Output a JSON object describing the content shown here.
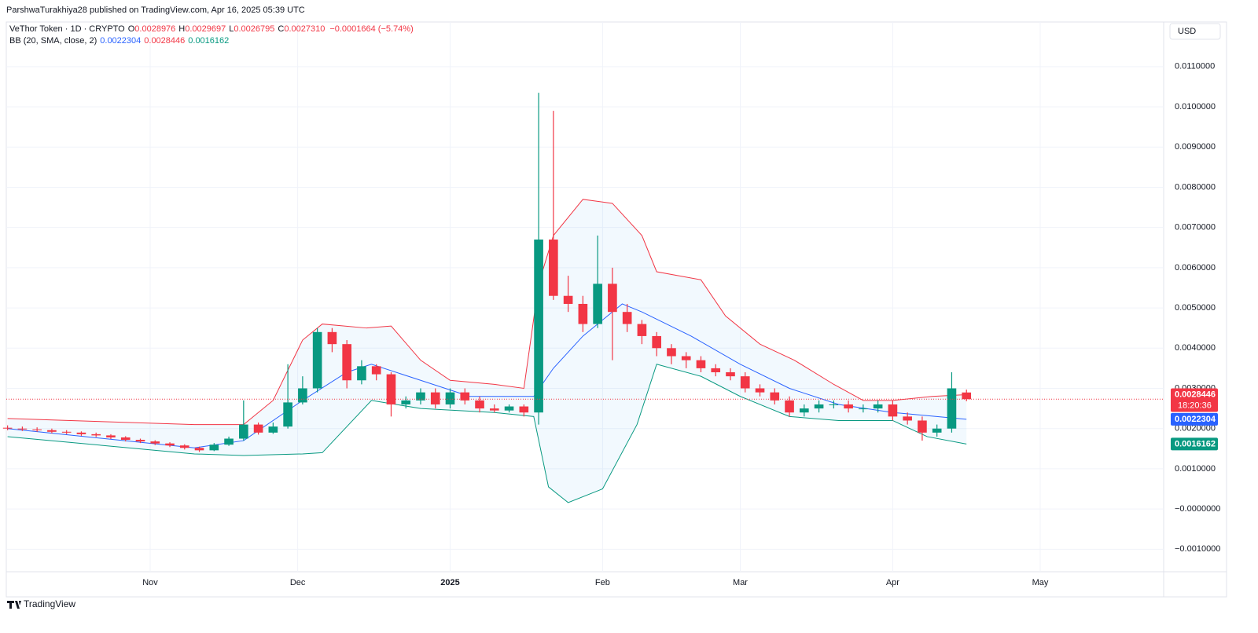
{
  "header": {
    "published": "ParshwaTurakhiya28 published on TradingView.com, Apr 16, 2025 05:39 UTC",
    "symbol": "VeThor Token · 1D · CRYPTO",
    "ohlc": [
      {
        "label": "O",
        "value": "0.0028976"
      },
      {
        "label": "H",
        "value": "0.0029697"
      },
      {
        "label": "L",
        "value": "0.0026795"
      },
      {
        "label": "C",
        "value": "0.0027310"
      }
    ],
    "change": "−0.0001664 (−5.74%)",
    "indicator": "BB (20, SMA, close, 2)",
    "indicator_values": [
      "0.0022304",
      "0.0028446",
      "0.0016162"
    ],
    "currency": "USD",
    "brand": "TradingView"
  },
  "chart_data": {
    "type": "candlestick",
    "up_color": "#089981",
    "down_color": "#f23645",
    "grid": true,
    "x": [
      2,
      5,
      8,
      11,
      14,
      17,
      20,
      23,
      26,
      29,
      32,
      35,
      38,
      41,
      44,
      47,
      50,
      53,
      56,
      59,
      62,
      65,
      68,
      71,
      74,
      77,
      80,
      83,
      86,
      89,
      92,
      95,
      98,
      101,
      104,
      107,
      110,
      113,
      116,
      119,
      122,
      125,
      128,
      131,
      134,
      137,
      140,
      143,
      146,
      149,
      152,
      155,
      158,
      161,
      164,
      167,
      170,
      173,
      176,
      179,
      182,
      185,
      188,
      191,
      194,
      197
    ],
    "open": [
      0.00202,
      0.002,
      0.00198,
      0.00196,
      0.00192,
      0.0019,
      0.00186,
      0.00183,
      0.00178,
      0.00172,
      0.00168,
      0.00163,
      0.00158,
      0.00152,
      0.00146,
      0.0016,
      0.00175,
      0.0021,
      0.0019,
      0.00205,
      0.00265,
      0.003,
      0.0044,
      0.0041,
      0.0032,
      0.00355,
      0.00335,
      0.0026,
      0.0027,
      0.0029,
      0.0026,
      0.0029,
      0.0027,
      0.0025,
      0.00245,
      0.00255,
      0.0024,
      0.0067,
      0.0053,
      0.0051,
      0.0046,
      0.0056,
      0.0049,
      0.0046,
      0.0043,
      0.004,
      0.0038,
      0.0037,
      0.0035,
      0.0034,
      0.0033,
      0.003,
      0.0029,
      0.0027,
      0.0024,
      0.0025,
      0.0026,
      0.0026,
      0.0025,
      0.0025,
      0.0026,
      0.0023,
      0.0022,
      0.0019,
      0.002,
      0.0028976
    ],
    "high": [
      0.00208,
      0.00205,
      0.00203,
      0.002,
      0.00196,
      0.00193,
      0.0019,
      0.00186,
      0.00181,
      0.00175,
      0.00171,
      0.00166,
      0.00161,
      0.00155,
      0.00164,
      0.0018,
      0.0027,
      0.00215,
      0.00215,
      0.0036,
      0.0033,
      0.0045,
      0.0045,
      0.0042,
      0.0037,
      0.0036,
      0.0034,
      0.0028,
      0.003,
      0.003,
      0.003,
      0.003,
      0.0028,
      0.0026,
      0.0026,
      0.0026,
      0.01035,
      0.0099,
      0.0058,
      0.0053,
      0.0068,
      0.006,
      0.0051,
      0.0047,
      0.0044,
      0.0041,
      0.0039,
      0.0038,
      0.0036,
      0.0035,
      0.0034,
      0.0031,
      0.003,
      0.0028,
      0.0026,
      0.0027,
      0.0027,
      0.0027,
      0.0026,
      0.0027,
      0.0027,
      0.0024,
      0.0023,
      0.0021,
      0.0034,
      0.0029697
    ],
    "low": [
      0.00196,
      0.00194,
      0.00192,
      0.00188,
      0.00186,
      0.00182,
      0.00179,
      0.00174,
      0.00168,
      0.00164,
      0.00159,
      0.00154,
      0.00148,
      0.00142,
      0.00144,
      0.00157,
      0.0017,
      0.00185,
      0.00187,
      0.002,
      0.0026,
      0.0029,
      0.0039,
      0.003,
      0.0031,
      0.0032,
      0.0023,
      0.0025,
      0.0026,
      0.0025,
      0.0025,
      0.0026,
      0.0024,
      0.0024,
      0.0024,
      0.0023,
      0.0021,
      0.0052,
      0.0049,
      0.0044,
      0.0045,
      0.0037,
      0.0044,
      0.0041,
      0.0038,
      0.0036,
      0.0035,
      0.0034,
      0.0033,
      0.0032,
      0.0029,
      0.0028,
      0.0026,
      0.0023,
      0.0023,
      0.0024,
      0.0025,
      0.0024,
      0.0024,
      0.0024,
      0.0022,
      0.0021,
      0.0017,
      0.0018,
      0.0019,
      0.0026795
    ],
    "close": [
      0.002,
      0.00198,
      0.00196,
      0.00192,
      0.0019,
      0.00186,
      0.00183,
      0.00178,
      0.00172,
      0.00168,
      0.00163,
      0.00158,
      0.00152,
      0.00146,
      0.0016,
      0.00175,
      0.0021,
      0.0019,
      0.00205,
      0.00265,
      0.003,
      0.0044,
      0.0041,
      0.0032,
      0.00355,
      0.00335,
      0.0026,
      0.0027,
      0.0029,
      0.0026,
      0.0029,
      0.0027,
      0.0025,
      0.00245,
      0.00255,
      0.0024,
      0.0067,
      0.0053,
      0.0051,
      0.0046,
      0.0056,
      0.0049,
      0.0046,
      0.0043,
      0.004,
      0.0038,
      0.0037,
      0.0035,
      0.0034,
      0.0033,
      0.003,
      0.0029,
      0.0027,
      0.0024,
      0.0025,
      0.0026,
      0.0026,
      0.0025,
      0.0025,
      0.0026,
      0.0023,
      0.0022,
      0.0019,
      0.002,
      0.003,
      0.002731
    ],
    "bands": [
      {
        "color": "#f23645",
        "x": [
          2,
          40,
          50,
          56,
          62,
          66,
          75,
          80,
          86,
          92,
          101,
          107,
          110,
          113,
          119,
          125,
          131,
          134,
          143,
          148,
          155,
          162,
          170,
          176,
          182,
          190,
          197
        ],
        "values": [
          0.00225,
          0.0021,
          0.0021,
          0.0027,
          0.0042,
          0.0046,
          0.0045,
          0.00455,
          0.0037,
          0.0032,
          0.0031,
          0.003,
          0.0056,
          0.0068,
          0.0077,
          0.0076,
          0.0068,
          0.0059,
          0.0057,
          0.0048,
          0.0041,
          0.0037,
          0.0031,
          0.0027,
          0.0027,
          0.0028,
          0.0028446
        ]
      },
      {
        "color": "#2962ff",
        "x": [
          2,
          40,
          50,
          62,
          71,
          76,
          86,
          96,
          109,
          113,
          119,
          127,
          131,
          141,
          151,
          161,
          171,
          182,
          197
        ],
        "values": [
          0.002,
          0.00152,
          0.0017,
          0.0027,
          0.0034,
          0.0036,
          0.0032,
          0.0028,
          0.0028,
          0.0035,
          0.0043,
          0.0051,
          0.0049,
          0.0043,
          0.0036,
          0.003,
          0.0026,
          0.0024,
          0.0022304
        ]
      },
      {
        "color": "#089981",
        "x": [
          2,
          40,
          50,
          62,
          66,
          76,
          86,
          101,
          109,
          112,
          116,
          123,
          130,
          134,
          143,
          151,
          161,
          171,
          182,
          189,
          197
        ],
        "values": [
          0.0018,
          0.00137,
          0.00133,
          0.00137,
          0.0014,
          0.0027,
          0.0025,
          0.0024,
          0.0023,
          0.00055,
          0.00016,
          0.0005,
          0.0021,
          0.0036,
          0.0033,
          0.0028,
          0.0023,
          0.0022,
          0.0022,
          0.0018,
          0.0016162
        ]
      }
    ],
    "xlim": [
      1.74,
      237.1
    ],
    "xticks": [
      {
        "value": 31,
        "label": "Nov"
      },
      {
        "value": 61,
        "label": "Dec"
      },
      {
        "value": 92,
        "label": "2025"
      },
      {
        "value": 123,
        "label": "Feb"
      },
      {
        "value": 151,
        "label": "Mar"
      },
      {
        "value": 182,
        "label": "Apr"
      },
      {
        "value": 212,
        "label": "May"
      }
    ],
    "ylim": [
      -0.00156,
      0.01211
    ],
    "yticks": [
      {
        "value": 0.011,
        "label": "0.0110000"
      },
      {
        "value": 0.01,
        "label": "0.0100000"
      },
      {
        "value": 0.009,
        "label": "0.0090000"
      },
      {
        "value": 0.008,
        "label": "0.0080000"
      },
      {
        "value": 0.007,
        "label": "0.0070000"
      },
      {
        "value": 0.006,
        "label": "0.0060000"
      },
      {
        "value": 0.005,
        "label": "0.0050000"
      },
      {
        "value": 0.004,
        "label": "0.0040000"
      },
      {
        "value": 0.003,
        "label": "0.0030000"
      },
      {
        "value": 0.002,
        "label": "0.0020000"
      },
      {
        "value": 0.001,
        "label": "0.0010000"
      },
      {
        "value": 0,
        "label": "−0.0000000"
      },
      {
        "value": -0.001,
        "label": "−0.0010000"
      }
    ],
    "price_labels": [
      {
        "value": 0.0028446,
        "color": "#f23645",
        "countdown": "18:20:36"
      },
      {
        "value": 0.0022304,
        "color": "#2962ff"
      },
      {
        "value": 0.0016162,
        "color": "#089981"
      }
    ]
  }
}
